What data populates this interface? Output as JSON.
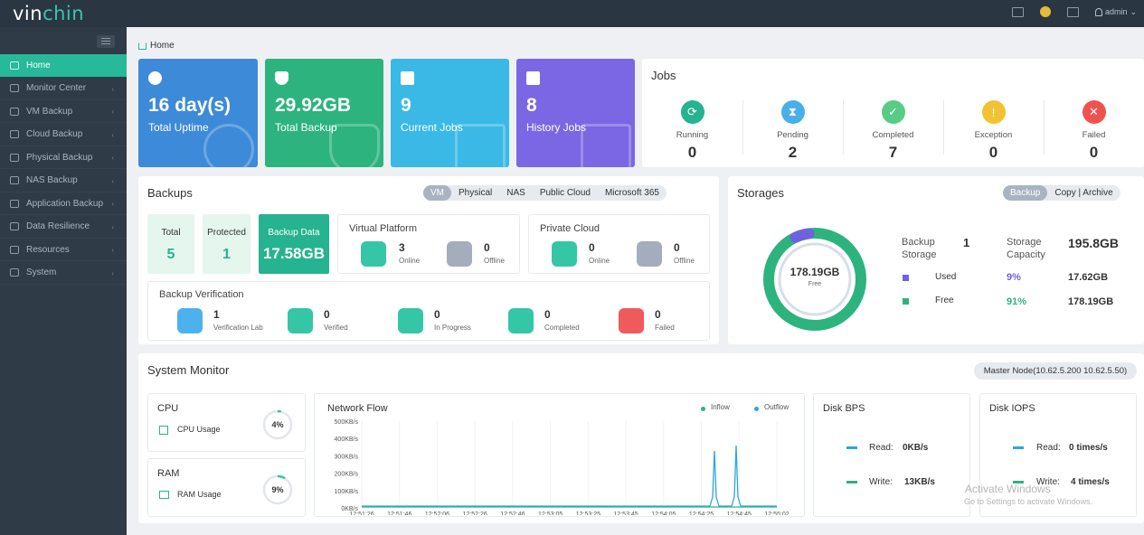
{
  "app": {
    "logo_a": "vin",
    "logo_b": "chin",
    "user": "admin"
  },
  "sidebar": {
    "items": [
      {
        "label": "Home",
        "icon": "home-icon"
      },
      {
        "label": "Monitor Center",
        "icon": "monitor-icon"
      },
      {
        "label": "VM Backup",
        "icon": "vm-icon"
      },
      {
        "label": "Cloud Backup",
        "icon": "cloud-icon"
      },
      {
        "label": "Physical Backup",
        "icon": "server-icon"
      },
      {
        "label": "NAS Backup",
        "icon": "nas-icon"
      },
      {
        "label": "Application Backup",
        "icon": "app-icon"
      },
      {
        "label": "Data Resilience",
        "icon": "shield-icon"
      },
      {
        "label": "Resources",
        "icon": "grid-icon"
      },
      {
        "label": "System",
        "icon": "gear-icon"
      }
    ]
  },
  "breadcrumb": "Home",
  "cards": [
    {
      "value": "16 day(s)",
      "label": "Total Uptime",
      "color": "#3d8ad8"
    },
    {
      "value": "29.92GB",
      "label": "Total Backup",
      "color": "#2db37e"
    },
    {
      "value": "9",
      "label": "Current Jobs",
      "color": "#3bb9e6"
    },
    {
      "value": "8",
      "label": "History Jobs",
      "color": "#7b67e4"
    }
  ],
  "jobs": {
    "title": "Jobs",
    "items": [
      {
        "label": "Running",
        "value": "0",
        "color": "#26b38f"
      },
      {
        "label": "Pending",
        "value": "2",
        "color": "#4aaee8"
      },
      {
        "label": "Completed",
        "value": "7",
        "color": "#58cc86"
      },
      {
        "label": "Exception",
        "value": "0",
        "color": "#f1c232"
      },
      {
        "label": "Failed",
        "value": "0",
        "color": "#ef5350"
      }
    ]
  },
  "backups": {
    "title": "Backups",
    "tabs": [
      "VM",
      "Physical",
      "NAS",
      "Public Cloud",
      "Microsoft 365"
    ],
    "total_label": "Total",
    "total": "5",
    "protected_label": "Protected",
    "protected": "1",
    "data_label": "Backup Data",
    "data": "17.58GB",
    "virtual": {
      "title": "Virtual Platform",
      "online": "3",
      "online_label": "Online",
      "offline": "0",
      "offline_label": "Offline"
    },
    "private": {
      "title": "Private Cloud",
      "online": "0",
      "online_label": "Online",
      "offline": "0",
      "offline_label": "Offline"
    },
    "verification": {
      "title": "Backup Verification",
      "items": [
        {
          "value": "1",
          "label": "Verification Lab",
          "color": "#4db1ee"
        },
        {
          "value": "0",
          "label": "Verified",
          "color": "#35c6a6"
        },
        {
          "value": "0",
          "label": "In Progress",
          "color": "#35c6a6"
        },
        {
          "value": "0",
          "label": "Completed",
          "color": "#35c6a6"
        },
        {
          "value": "0",
          "label": "Failed",
          "color": "#ef5b5b"
        }
      ]
    }
  },
  "storages": {
    "title": "Storages",
    "tabs": [
      "Backup",
      "Copy | Archive"
    ],
    "donut_value": "178.19GB",
    "donut_label": "Free",
    "backup_storage_label": "Backup Storage",
    "backup_storage": "1",
    "capacity_label": "Storage Capacity",
    "capacity": "195.8GB",
    "used_label": "Used",
    "used_pct": "9%",
    "used_size": "17.62GB",
    "free_label": "Free",
    "free_pct": "91%",
    "free_size": "178.19GB",
    "used_fraction": 0.09
  },
  "monitor": {
    "title": "System Monitor",
    "node": "Master Node(10.62.5.200 10.62.5.50)",
    "cpu_title": "CPU",
    "cpu_label": "CPU Usage",
    "cpu": "4%",
    "cpu_fraction": 0.04,
    "ram_title": "RAM",
    "ram_label": "RAM Usage",
    "ram": "9%",
    "ram_fraction": 0.09,
    "network_title": "Network Flow",
    "inflow": "Inflow",
    "outflow": "Outflow",
    "yticks": [
      "500KB/s",
      "400KB/s",
      "300KB/s",
      "200KB/s",
      "100KB/s",
      "0KB/s"
    ],
    "xticks": [
      "12:51:26",
      "12:51:46",
      "12:52:06",
      "12:52:26",
      "12:52:46",
      "12:53:05",
      "12:53:25",
      "12:53:45",
      "12:54:05",
      "12:54:25",
      "12:54:45",
      "12:55:02"
    ],
    "disk_bps": {
      "title": "Disk BPS",
      "read_label": "Read:",
      "read": "0KB/s",
      "write_label": "Write:",
      "write": "13KB/s"
    },
    "disk_iops": {
      "title": "Disk IOPS",
      "read_label": "Read:",
      "read": "0 times/s",
      "write_label": "Write:",
      "write": "4 times/s"
    }
  },
  "watermark": {
    "line1": "Activate Windows",
    "line2": "Go to Settings to activate Windows."
  }
}
